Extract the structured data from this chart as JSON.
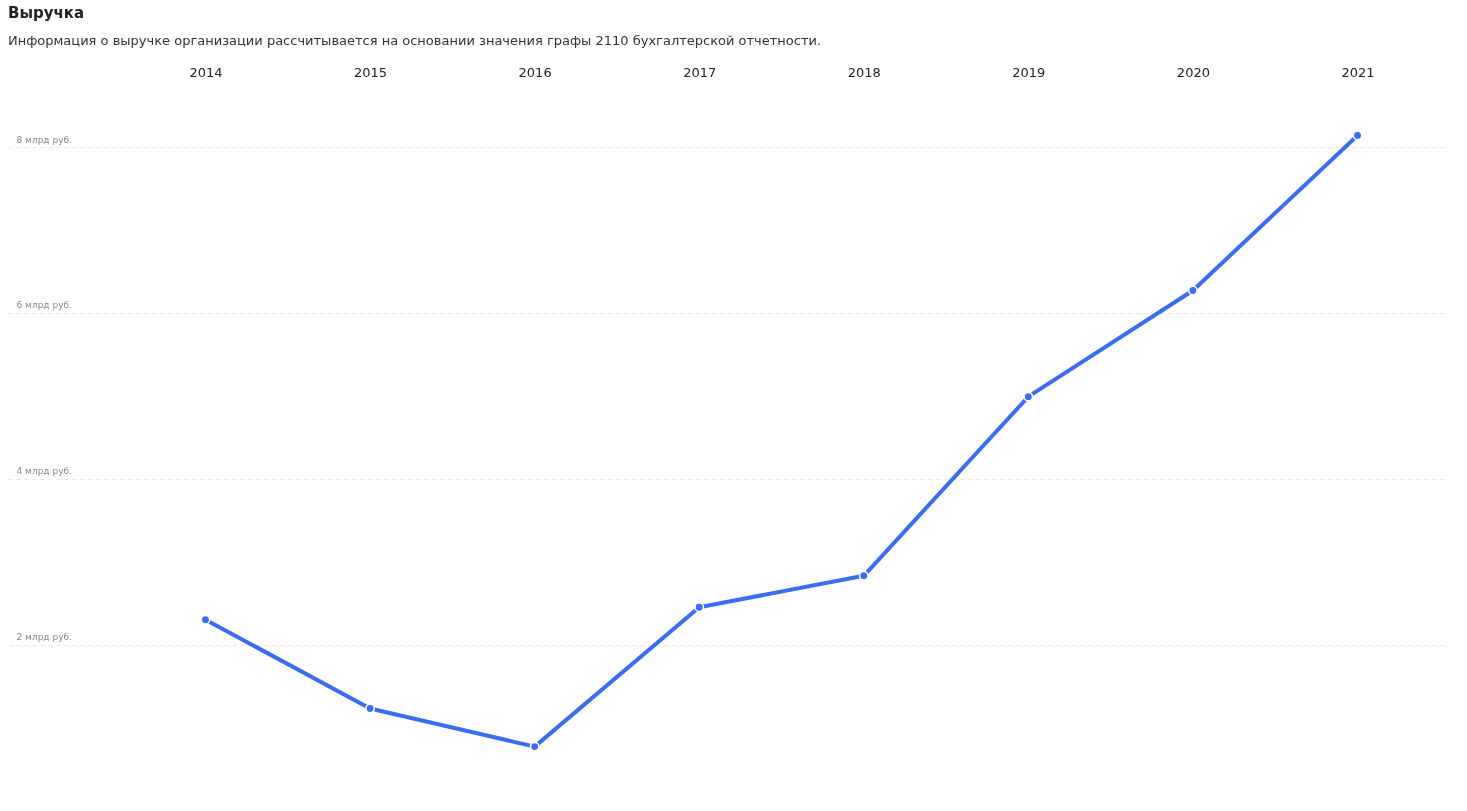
{
  "chart_data": {
    "type": "line",
    "title": "Выручка",
    "subtitle": "Информация о выручке организации рассчитывается на основании значения графы 2110 бухгалтерской отчетности.",
    "categories": [
      "2014",
      "2015",
      "2016",
      "2017",
      "2018",
      "2019",
      "2020",
      "2021"
    ],
    "series": [
      {
        "color": "#3a6df0",
        "values": [
          2.3,
          1.23,
          0.77,
          2.45,
          2.83,
          4.99,
          6.27,
          8.14
        ]
      }
    ],
    "ylim": [
      0.5,
      8.7
    ],
    "yticks": [
      {
        "value": 2,
        "label": "2 млрд руб."
      },
      {
        "value": 4,
        "label": "4 млрд руб."
      },
      {
        "value": 6,
        "label": "6 млрд руб."
      },
      {
        "value": 8,
        "label": "8 млрд руб."
      }
    ],
    "grid": "y",
    "marker": "circle",
    "line_style": "solid"
  }
}
